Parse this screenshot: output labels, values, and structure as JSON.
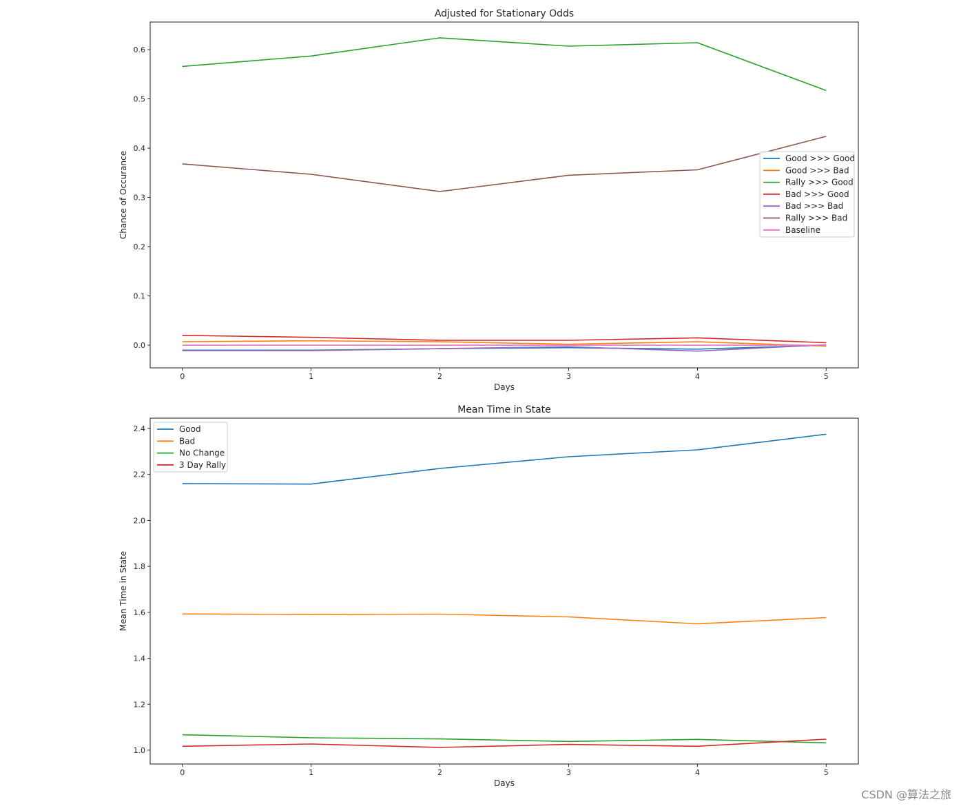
{
  "chart_data": [
    {
      "type": "line",
      "title": "Adjusted for Stationary Odds",
      "xlabel": "Days",
      "ylabel": "Chance of Occurance",
      "x": [
        0,
        1,
        2,
        3,
        4,
        5
      ],
      "xlim": [
        -0.25,
        5.25
      ],
      "ylim": [
        -0.046,
        0.656
      ],
      "xticks": [
        "0",
        "1",
        "2",
        "3",
        "4",
        "5"
      ],
      "yticks": [
        0.0,
        0.1,
        0.2,
        0.3,
        0.4,
        0.5,
        0.6
      ],
      "ytick_labels": [
        "0.0",
        "0.1",
        "0.2",
        "0.3",
        "0.4",
        "0.5",
        "0.6"
      ],
      "legend_position": "center-right",
      "grid": false,
      "series": [
        {
          "name": "Good >>> Good",
          "color": "#1f77b4",
          "values": [
            -0.01,
            -0.01,
            -0.007,
            -0.005,
            -0.008,
            0.0
          ]
        },
        {
          "name": "Good >>> Bad",
          "color": "#ff7f0e",
          "values": [
            0.007,
            0.009,
            0.007,
            0.002,
            0.007,
            -0.002
          ]
        },
        {
          "name": "Rally >>> Good",
          "color": "#2ca02c",
          "values": [
            0.566,
            0.587,
            0.624,
            0.607,
            0.614,
            0.517
          ]
        },
        {
          "name": "Bad >>> Good",
          "color": "#d62728",
          "values": [
            0.02,
            0.016,
            0.01,
            0.01,
            0.015,
            0.005
          ]
        },
        {
          "name": "Bad >>> Bad",
          "color": "#9467bd",
          "values": [
            -0.011,
            -0.011,
            -0.007,
            -0.003,
            -0.012,
            0.001
          ]
        },
        {
          "name": "Rally >>> Bad",
          "color": "#8c564b",
          "values": [
            0.368,
            0.347,
            0.312,
            0.345,
            0.356,
            0.424
          ]
        },
        {
          "name": "Baseline",
          "color": "#e377c2",
          "values": [
            0.0,
            0.0,
            0.0,
            0.0,
            0.0,
            0.0
          ]
        }
      ]
    },
    {
      "type": "line",
      "title": "Mean Time in State",
      "xlabel": "Days",
      "ylabel": "Mean Time in State",
      "x": [
        0,
        1,
        2,
        3,
        4,
        5
      ],
      "xlim": [
        -0.25,
        5.25
      ],
      "ylim": [
        0.94,
        2.445
      ],
      "xticks": [
        "0",
        "1",
        "2",
        "3",
        "4",
        "5"
      ],
      "yticks": [
        1.0,
        1.2,
        1.4,
        1.6,
        1.8,
        2.0,
        2.2,
        2.4
      ],
      "ytick_labels": [
        "1.0",
        "1.2",
        "1.4",
        "1.6",
        "1.8",
        "2.0",
        "2.2",
        "2.4"
      ],
      "legend_position": "upper-left",
      "grid": false,
      "series": [
        {
          "name": "Good",
          "color": "#1f77b4",
          "values": [
            2.16,
            2.158,
            2.226,
            2.277,
            2.307,
            2.375
          ]
        },
        {
          "name": "Bad",
          "color": "#ff7f0e",
          "values": [
            1.593,
            1.591,
            1.592,
            1.58,
            1.55,
            1.577
          ]
        },
        {
          "name": "No Change",
          "color": "#2ca02c",
          "values": [
            1.067,
            1.054,
            1.049,
            1.038,
            1.047,
            1.032
          ]
        },
        {
          "name": "3 Day Rally",
          "color": "#d62728",
          "values": [
            1.017,
            1.027,
            1.012,
            1.025,
            1.017,
            1.048
          ]
        }
      ]
    }
  ],
  "watermark": "CSDN @算法之旅"
}
